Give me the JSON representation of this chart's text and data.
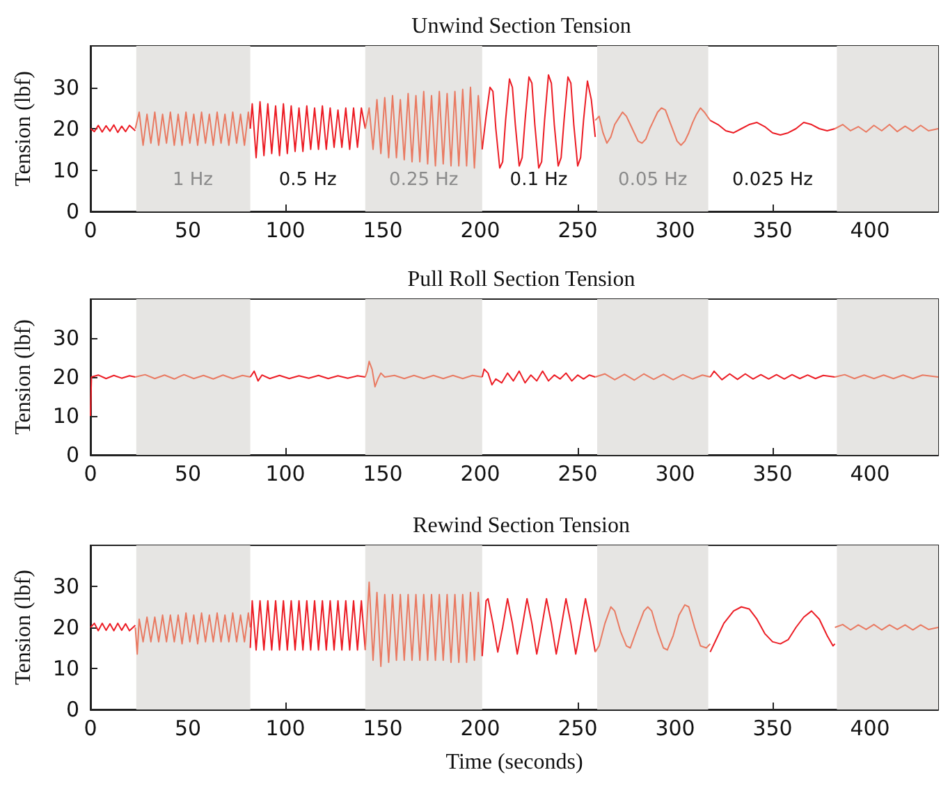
{
  "chart_data": [
    {
      "type": "line",
      "title": "Unwind Section Tension",
      "ylabel": "Tension (lbf)",
      "xlim": [
        0,
        435
      ],
      "xticks": [
        0,
        50,
        100,
        150,
        200,
        250,
        300,
        350,
        400
      ],
      "ylim": [
        0,
        40
      ],
      "yticks": [
        0,
        10,
        20,
        30
      ],
      "grid": false,
      "bands": [
        {
          "axis": "x",
          "from": 23.5,
          "to": 82,
          "color": "#e6e5e3"
        },
        {
          "axis": "x",
          "from": 141,
          "to": 201,
          "color": "#e6e5e3"
        },
        {
          "axis": "x",
          "from": 260,
          "to": 317,
          "color": "#e6e5e3"
        },
        {
          "axis": "x",
          "from": 383,
          "to": 435,
          "color": "#e6e5e3"
        }
      ],
      "annotations": [
        "1 Hz",
        "0.5 Hz",
        "0.25 Hz",
        "0.1 Hz",
        "0.05 Hz",
        "0.025 Hz"
      ],
      "series": [
        {
          "color": "#ec1c24",
          "x": [
            0,
            2,
            4,
            6,
            8,
            10,
            12,
            14,
            16,
            18,
            20,
            23
          ],
          "values": [
            20,
            19.3,
            20.8,
            19.2,
            20.7,
            19.4,
            20.9,
            19.1,
            20.6,
            19.3,
            20.8,
            19.5
          ]
        },
        {
          "color": "#e97a62",
          "x": [
            23,
            25,
            27,
            29,
            31,
            33,
            35,
            37,
            39,
            41,
            43,
            45,
            47,
            49,
            51,
            53,
            55,
            57,
            59,
            61,
            63,
            65,
            67,
            69,
            71,
            73,
            75,
            77,
            79,
            81,
            82
          ],
          "values": [
            20,
            24,
            16,
            23.5,
            16.5,
            24,
            16,
            23.5,
            16.5,
            24,
            16,
            23.5,
            16,
            24,
            16.5,
            23.5,
            16,
            24,
            16.5,
            23.5,
            16,
            24,
            16.5,
            23.5,
            16,
            24,
            16.5,
            23.5,
            16,
            24,
            20
          ]
        },
        {
          "color": "#ec1c24",
          "x": [
            82,
            83,
            85,
            87,
            89,
            91,
            93,
            95,
            97,
            99,
            101,
            103,
            105,
            107,
            109,
            111,
            113,
            115,
            117,
            119,
            121,
            123,
            125,
            127,
            129,
            131,
            133,
            135,
            137,
            139,
            141
          ],
          "values": [
            20,
            26,
            13,
            26.5,
            13.5,
            26,
            14,
            25.5,
            13.5,
            26,
            14,
            25.5,
            14.5,
            25,
            14.5,
            25.5,
            15,
            25,
            15,
            25.5,
            15,
            25,
            15.5,
            24.5,
            15.5,
            25,
            15,
            25,
            15.5,
            25,
            20
          ]
        },
        {
          "color": "#e97a62",
          "x": [
            141,
            143,
            145,
            147,
            149,
            151,
            153,
            155,
            157,
            159,
            161,
            163,
            165,
            167,
            169,
            171,
            173,
            175,
            177,
            179,
            181,
            183,
            185,
            187,
            189,
            191,
            193,
            195,
            197,
            199,
            201
          ],
          "values": [
            20,
            25,
            15,
            27,
            14,
            27.5,
            13,
            28,
            13,
            27,
            12.5,
            28.5,
            12,
            28,
            12,
            29,
            11.5,
            28,
            11,
            29,
            11.5,
            28.5,
            11,
            29,
            11,
            29.5,
            11,
            30,
            10.5,
            28,
            15
          ]
        },
        {
          "color": "#ec1c24",
          "x": [
            201,
            203,
            205,
            206.5,
            208,
            210,
            211.5,
            213,
            215,
            216.5,
            218,
            220,
            221.5,
            223,
            225,
            226.5,
            228,
            230,
            231.5,
            233,
            235,
            236.5,
            238,
            240,
            241.5,
            243,
            245,
            246.5,
            248,
            250,
            251.5,
            253,
            255,
            257,
            259
          ],
          "values": [
            15,
            23,
            30,
            29,
            20,
            10.5,
            12,
            22,
            32,
            30,
            21,
            11,
            13,
            22,
            32.5,
            31,
            21,
            10.5,
            12,
            22,
            33,
            31,
            21,
            11,
            13,
            22,
            32.5,
            31,
            21,
            11,
            13,
            22,
            31.5,
            27,
            18
          ]
        },
        {
          "color": "#e97a62",
          "x": [
            259,
            261,
            263,
            265,
            267,
            269,
            271,
            273,
            275,
            277,
            279,
            281,
            283,
            285,
            287,
            289,
            291,
            293,
            295,
            297,
            299,
            301,
            303,
            305,
            307,
            309,
            311,
            313,
            315,
            318
          ],
          "values": [
            22,
            23,
            19,
            16.5,
            18,
            21,
            22.5,
            24,
            23,
            21,
            19,
            17,
            16.5,
            17.5,
            20,
            22,
            24,
            25,
            24.5,
            22,
            19.5,
            17,
            16,
            17,
            19,
            21.5,
            23.5,
            25,
            24,
            22
          ]
        },
        {
          "color": "#ec1c24",
          "x": [
            318,
            322,
            326,
            330,
            334,
            338,
            342,
            346,
            350,
            354,
            358,
            362,
            366,
            370,
            374,
            378,
            382
          ],
          "values": [
            22,
            21,
            19.5,
            19,
            20,
            21,
            21.5,
            20.5,
            19,
            18.5,
            19,
            20,
            21.5,
            21,
            20,
            19.5,
            20
          ]
        },
        {
          "color": "#e97a62",
          "x": [
            382,
            386,
            390,
            394,
            398,
            402,
            406,
            410,
            414,
            418,
            422,
            426,
            430,
            435
          ],
          "values": [
            20,
            21,
            19.5,
            20.5,
            19.2,
            20.8,
            19.5,
            21,
            19.3,
            20.6,
            19.4,
            20.8,
            19.5,
            20
          ]
        }
      ]
    },
    {
      "type": "line",
      "title": "Pull Roll Section Tension",
      "ylabel": "Tension (lbf)",
      "xlim": [
        0,
        435
      ],
      "xticks": [
        0,
        50,
        100,
        150,
        200,
        250,
        300,
        350,
        400
      ],
      "ylim": [
        0,
        40
      ],
      "yticks": [
        0,
        10,
        20,
        30
      ],
      "grid": false,
      "bands": [
        {
          "axis": "x",
          "from": 23.5,
          "to": 82,
          "color": "#e6e5e3"
        },
        {
          "axis": "x",
          "from": 141,
          "to": 201,
          "color": "#e6e5e3"
        },
        {
          "axis": "x",
          "from": 260,
          "to": 317,
          "color": "#e6e5e3"
        },
        {
          "axis": "x",
          "from": 383,
          "to": 435,
          "color": "#e6e5e3"
        }
      ],
      "series": [
        {
          "color": "#ec1c24",
          "x": [
            0,
            0.5,
            4,
            8,
            12,
            16,
            20,
            23
          ],
          "values": [
            10,
            20,
            20.5,
            19.6,
            20.4,
            19.7,
            20.3,
            20
          ]
        },
        {
          "color": "#e97a62",
          "x": [
            23,
            28,
            33,
            38,
            43,
            48,
            53,
            58,
            63,
            68,
            73,
            78,
            82
          ],
          "values": [
            20,
            20.6,
            19.6,
            20.5,
            19.5,
            20.6,
            19.6,
            20.4,
            19.5,
            20.5,
            19.6,
            20.4,
            20
          ]
        },
        {
          "color": "#ec1c24",
          "x": [
            82,
            84,
            86,
            88,
            92,
            97,
            102,
            107,
            112,
            117,
            122,
            127,
            132,
            137,
            141
          ],
          "values": [
            20,
            21.5,
            19,
            20.5,
            19.6,
            20.4,
            19.6,
            20.3,
            19.7,
            20.4,
            19.6,
            20.3,
            19.7,
            20.3,
            20
          ]
        },
        {
          "color": "#e97a62",
          "x": [
            141,
            142,
            143,
            144.5,
            146,
            147.5,
            149,
            151,
            156,
            161,
            166,
            171,
            176,
            181,
            186,
            191,
            196,
            201
          ],
          "values": [
            20,
            21.5,
            24,
            22,
            17.5,
            19.5,
            21,
            20,
            20.4,
            19.6,
            20.4,
            19.6,
            20.4,
            19.6,
            20.4,
            19.6,
            20.4,
            20
          ]
        },
        {
          "color": "#ec1c24",
          "x": [
            201,
            202,
            204,
            206,
            208,
            211,
            214,
            217,
            220,
            223,
            226,
            229,
            232,
            235,
            238,
            241,
            244,
            247,
            250,
            253,
            256,
            259
          ],
          "values": [
            20,
            22,
            21,
            18,
            19.5,
            18.5,
            21,
            19,
            21.5,
            18.5,
            20.5,
            19,
            21.5,
            19,
            20.5,
            19.5,
            21,
            19,
            20.5,
            19.5,
            20.5,
            20
          ]
        },
        {
          "color": "#e97a62",
          "x": [
            259,
            264,
            269,
            274,
            279,
            284,
            289,
            294,
            299,
            304,
            309,
            314,
            318
          ],
          "values": [
            20,
            20.8,
            19.3,
            20.7,
            19.2,
            20.8,
            19.4,
            20.7,
            19.3,
            20.6,
            19.5,
            20.5,
            20
          ]
        },
        {
          "color": "#ec1c24",
          "x": [
            318,
            320,
            324,
            328,
            332,
            336,
            340,
            344,
            348,
            352,
            356,
            360,
            364,
            368,
            372,
            376,
            382
          ],
          "values": [
            20,
            21.5,
            19.3,
            20.8,
            19.4,
            20.8,
            19.5,
            20.6,
            19.5,
            20.6,
            19.5,
            20.6,
            19.6,
            20.5,
            19.6,
            20.4,
            20
          ]
        },
        {
          "color": "#e97a62",
          "x": [
            382,
            387,
            392,
            397,
            402,
            407,
            412,
            417,
            422,
            427,
            435
          ],
          "values": [
            20,
            20.6,
            19.6,
            20.5,
            19.6,
            20.5,
            19.6,
            20.5,
            19.6,
            20.5,
            20
          ]
        }
      ]
    },
    {
      "type": "line",
      "title": "Rewind Section Tension",
      "xlabel": "Time (seconds)",
      "ylabel": "Tension (lbf)",
      "xlim": [
        0,
        435
      ],
      "xticks": [
        0,
        50,
        100,
        150,
        200,
        250,
        300,
        350,
        400
      ],
      "ylim": [
        0,
        40
      ],
      "yticks": [
        0,
        10,
        20,
        30
      ],
      "grid": false,
      "bands": [
        {
          "axis": "x",
          "from": 23.5,
          "to": 82,
          "color": "#e6e5e3"
        },
        {
          "axis": "x",
          "from": 141,
          "to": 201,
          "color": "#e6e5e3"
        },
        {
          "axis": "x",
          "from": 260,
          "to": 317,
          "color": "#e6e5e3"
        },
        {
          "axis": "x",
          "from": 383,
          "to": 435,
          "color": "#e6e5e3"
        }
      ],
      "series": [
        {
          "color": "#ec1c24",
          "x": [
            0,
            2,
            4,
            6,
            8,
            10,
            12,
            14,
            16,
            18,
            20,
            23
          ],
          "values": [
            20,
            21,
            19.2,
            21,
            19.3,
            20.9,
            19.2,
            21,
            19.3,
            20.9,
            19.2,
            20.5
          ]
        },
        {
          "color": "#e97a62",
          "x": [
            23,
            24,
            25,
            27,
            29,
            31,
            33,
            35,
            37,
            39,
            41,
            43,
            45,
            47,
            49,
            51,
            53,
            55,
            57,
            59,
            61,
            63,
            65,
            67,
            69,
            71,
            73,
            75,
            77,
            79,
            81,
            82
          ],
          "values": [
            20,
            13.5,
            22,
            16.5,
            22.5,
            16.5,
            22.5,
            16.5,
            23,
            16.5,
            23,
            16.5,
            23,
            16,
            23.5,
            16.5,
            23,
            16,
            23.5,
            16.5,
            23,
            16.5,
            23.5,
            16.5,
            23,
            16.5,
            23.5,
            16.5,
            23,
            16.5,
            23.5,
            20
          ]
        },
        {
          "color": "#ec1c24",
          "x": [
            82,
            83,
            85,
            87,
            89,
            91,
            93,
            95,
            97,
            99,
            101,
            103,
            105,
            107,
            109,
            111,
            113,
            115,
            117,
            119,
            121,
            123,
            125,
            127,
            129,
            131,
            133,
            135,
            137,
            139,
            141
          ],
          "values": [
            15,
            26.5,
            14.5,
            26.5,
            14.5,
            26.5,
            14.5,
            26.5,
            14.5,
            26.5,
            14.5,
            26.5,
            14.5,
            26.5,
            14.5,
            26.5,
            14.5,
            26.5,
            14.5,
            26.5,
            14.5,
            26.5,
            14.5,
            26.5,
            14.5,
            26.5,
            14.5,
            26.5,
            14.5,
            26.5,
            14.5
          ]
        },
        {
          "color": "#e97a62",
          "x": [
            141,
            143,
            145,
            147,
            149,
            151,
            153,
            155,
            157,
            159,
            161,
            163,
            165,
            167,
            169,
            171,
            173,
            175,
            177,
            179,
            181,
            183,
            185,
            187,
            189,
            191,
            193,
            195,
            197,
            199,
            201
          ],
          "values": [
            14.5,
            31,
            12,
            28.5,
            10.5,
            28,
            11.5,
            28,
            12,
            28,
            12,
            28,
            12,
            28,
            12,
            28,
            12,
            28,
            12,
            28,
            12,
            28,
            11.5,
            28,
            11.5,
            28,
            11.5,
            28.5,
            12,
            28.5,
            13
          ]
        },
        {
          "color": "#ec1c24",
          "x": [
            201,
            203,
            204,
            206.5,
            209,
            211.5,
            214,
            216.5,
            219,
            221.5,
            224,
            226.5,
            229,
            231.5,
            234,
            236.5,
            239,
            241.5,
            244,
            246.5,
            249,
            251.5,
            254,
            256.5,
            259
          ],
          "values": [
            13,
            26.5,
            27,
            21,
            14,
            20,
            27,
            21,
            13.5,
            20,
            27,
            21,
            13.5,
            20,
            27,
            21,
            13.5,
            20,
            27,
            21,
            13.5,
            20,
            27,
            21,
            14
          ]
        },
        {
          "color": "#e97a62",
          "x": [
            259,
            261,
            264,
            267,
            269,
            272,
            275,
            277,
            280,
            284,
            286,
            288,
            291,
            294,
            296,
            299,
            302,
            305,
            307,
            310,
            313,
            316,
            318
          ],
          "values": [
            14,
            15.5,
            21,
            25,
            24,
            19,
            15.5,
            15,
            19,
            24,
            25,
            24,
            19,
            15,
            14.5,
            18,
            23,
            25.5,
            25,
            20,
            15.5,
            15,
            16
          ]
        },
        {
          "color": "#ec1c24",
          "x": [
            318,
            321,
            325,
            330,
            334,
            338,
            342,
            346,
            350,
            354,
            358,
            362,
            366,
            370,
            374,
            378,
            381,
            382
          ],
          "values": [
            14,
            17,
            21,
            24,
            25,
            24.5,
            22,
            18.5,
            16.5,
            16,
            17,
            20,
            22.5,
            24,
            22,
            18,
            15.5,
            16
          ]
        },
        {
          "color": "#e97a62",
          "x": [
            382,
            386,
            390,
            394,
            398,
            402,
            406,
            410,
            414,
            418,
            422,
            426,
            430,
            435
          ],
          "values": [
            20,
            20.7,
            19.4,
            20.6,
            19.5,
            20.7,
            19.4,
            20.6,
            19.5,
            20.6,
            19.4,
            20.6,
            19.5,
            20
          ]
        }
      ]
    }
  ]
}
